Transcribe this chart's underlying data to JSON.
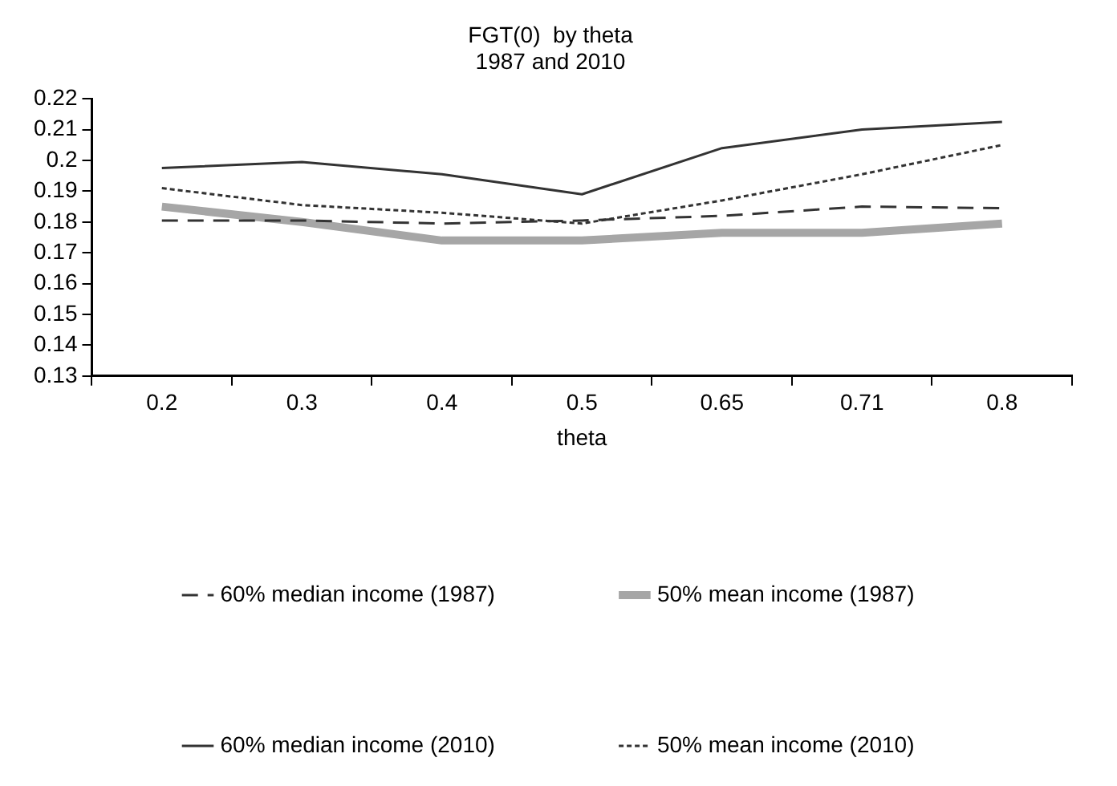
{
  "chart_data": {
    "type": "line",
    "title": "FGT(0)  by theta",
    "subtitle": "1987 and 2010",
    "xlabel": "theta",
    "categories": [
      "0.2",
      "0.3",
      "0.4",
      "0.5",
      "0.65",
      "0.71",
      "0.8"
    ],
    "ylim": [
      0.13,
      0.22
    ],
    "yticks": [
      0.13,
      0.14,
      0.15,
      0.16,
      0.17,
      0.18,
      0.19,
      0.2,
      0.21,
      0.22
    ],
    "grid": false,
    "legend": "bottom",
    "marker": "none",
    "series": [
      {
        "name": "60% median income (1987)",
        "color": "#333333",
        "line_style": "dashed",
        "values": [
          0.1805,
          0.1805,
          0.1795,
          0.1805,
          0.182,
          0.185,
          0.1845
        ]
      },
      {
        "name": "50% mean income (1987)",
        "color": "#a6a6a6",
        "line_style": "solid",
        "values": [
          0.185,
          0.18,
          0.174,
          0.174,
          0.1765,
          0.1765,
          0.1795
        ]
      },
      {
        "name": "60% median income (2010)",
        "color": "#333333",
        "line_style": "solid",
        "values": [
          0.1975,
          0.1995,
          0.1955,
          0.189,
          0.204,
          0.21,
          0.2125
        ]
      },
      {
        "name": "50% mean income (2010)",
        "color": "#333333",
        "line_style": "dotted",
        "values": [
          0.191,
          0.1855,
          0.183,
          0.1795,
          0.187,
          0.1955,
          0.205
        ]
      }
    ]
  }
}
